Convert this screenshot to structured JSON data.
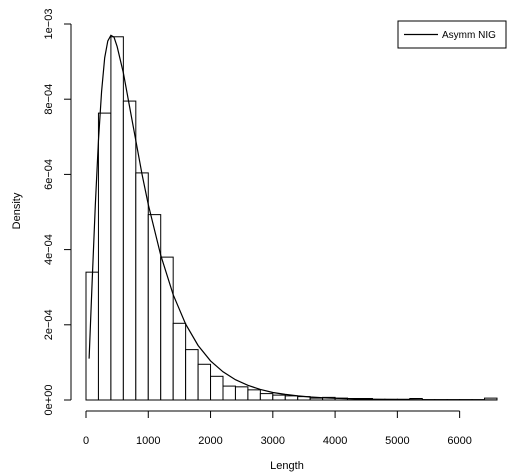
{
  "chart_data": {
    "type": "bar",
    "title": "",
    "xlabel": "Length",
    "ylabel": "Density",
    "xlim": [
      0,
      6600
    ],
    "ylim": [
      0,
      0.001
    ],
    "x_ticks": [
      0,
      1000,
      2000,
      3000,
      4000,
      5000,
      6000
    ],
    "x_tick_labels": [
      "0",
      "1000",
      "2000",
      "3000",
      "4000",
      "5000",
      "6000"
    ],
    "y_ticks": [
      0,
      0.0002,
      0.0004,
      0.0006,
      0.0008,
      0.001
    ],
    "y_tick_labels": [
      "0e+00",
      "2e−04",
      "4e−04",
      "6e−04",
      "8e−04",
      "1e−03"
    ],
    "grid": false,
    "legend": {
      "position": "top-right",
      "entries": [
        "Asymm NIG"
      ]
    },
    "histogram": {
      "bin_width": 200,
      "bins": [
        {
          "x0": 0,
          "x1": 200,
          "density": 0.00034
        },
        {
          "x0": 200,
          "x1": 400,
          "density": 0.000763
        },
        {
          "x0": 400,
          "x1": 600,
          "density": 0.000966
        },
        {
          "x0": 600,
          "x1": 800,
          "density": 0.000795
        },
        {
          "x0": 800,
          "x1": 1000,
          "density": 0.000604
        },
        {
          "x0": 1000,
          "x1": 1200,
          "density": 0.000493
        },
        {
          "x0": 1200,
          "x1": 1400,
          "density": 0.00038
        },
        {
          "x0": 1400,
          "x1": 1600,
          "density": 0.000204
        },
        {
          "x0": 1600,
          "x1": 1800,
          "density": 0.000134
        },
        {
          "x0": 1800,
          "x1": 2000,
          "density": 9.5e-05
        },
        {
          "x0": 2000,
          "x1": 2200,
          "density": 6.3e-05
        },
        {
          "x0": 2200,
          "x1": 2400,
          "density": 3.7e-05
        },
        {
          "x0": 2400,
          "x1": 2600,
          "density": 3.5e-05
        },
        {
          "x0": 2600,
          "x1": 2800,
          "density": 2.7e-05
        },
        {
          "x0": 2800,
          "x1": 3000,
          "density": 1.7e-05
        },
        {
          "x0": 3000,
          "x1": 3200,
          "density": 1.3e-05
        },
        {
          "x0": 3200,
          "x1": 3400,
          "density": 1.1e-05
        },
        {
          "x0": 3400,
          "x1": 3600,
          "density": 9e-06
        },
        {
          "x0": 3600,
          "x1": 3800,
          "density": 5e-06
        },
        {
          "x0": 3800,
          "x1": 4000,
          "density": 7e-06
        },
        {
          "x0": 4000,
          "x1": 4200,
          "density": 5e-06
        },
        {
          "x0": 4200,
          "x1": 4400,
          "density": 4e-06
        },
        {
          "x0": 4400,
          "x1": 4600,
          "density": 4e-06
        },
        {
          "x0": 4600,
          "x1": 4800,
          "density": 2e-06
        },
        {
          "x0": 4800,
          "x1": 5000,
          "density": 2e-06
        },
        {
          "x0": 5000,
          "x1": 5200,
          "density": 2e-06
        },
        {
          "x0": 5200,
          "x1": 5400,
          "density": 4e-06
        },
        {
          "x0": 5400,
          "x1": 5600,
          "density": 1e-06
        },
        {
          "x0": 5600,
          "x1": 5800,
          "density": 1e-06
        },
        {
          "x0": 5800,
          "x1": 6000,
          "density": 1e-06
        },
        {
          "x0": 6000,
          "x1": 6200,
          "density": 1e-06
        },
        {
          "x0": 6200,
          "x1": 6400,
          "density": 1e-06
        },
        {
          "x0": 6400,
          "x1": 6600,
          "density": 5e-06
        }
      ]
    },
    "series": [
      {
        "name": "Asymm NIG",
        "type": "line",
        "x": [
          50,
          100,
          150,
          200,
          250,
          300,
          350,
          400,
          450,
          500,
          600,
          700,
          800,
          900,
          1000,
          1200,
          1400,
          1600,
          1800,
          2000,
          2200,
          2400,
          2600,
          2800,
          3000,
          3200,
          3400,
          3600,
          3800,
          4000,
          4500,
          5000,
          5500,
          6000,
          6600
        ],
        "y": [
          0.00011,
          0.00032,
          0.00052,
          0.00069,
          0.00082,
          0.00091,
          0.000955,
          0.00097,
          0.000965,
          0.00094,
          0.00087,
          0.00078,
          0.00069,
          0.0006,
          0.00052,
          0.000385,
          0.00028,
          0.000202,
          0.000145,
          0.000104,
          7.5e-05,
          5.4e-05,
          3.9e-05,
          2.8e-05,
          2e-05,
          1.5e-05,
          1.1e-05,
          8e-06,
          6e-06,
          4.5e-06,
          2e-06,
          1e-06,
          5e-07,
          3e-07,
          2e-07
        ]
      }
    ]
  }
}
